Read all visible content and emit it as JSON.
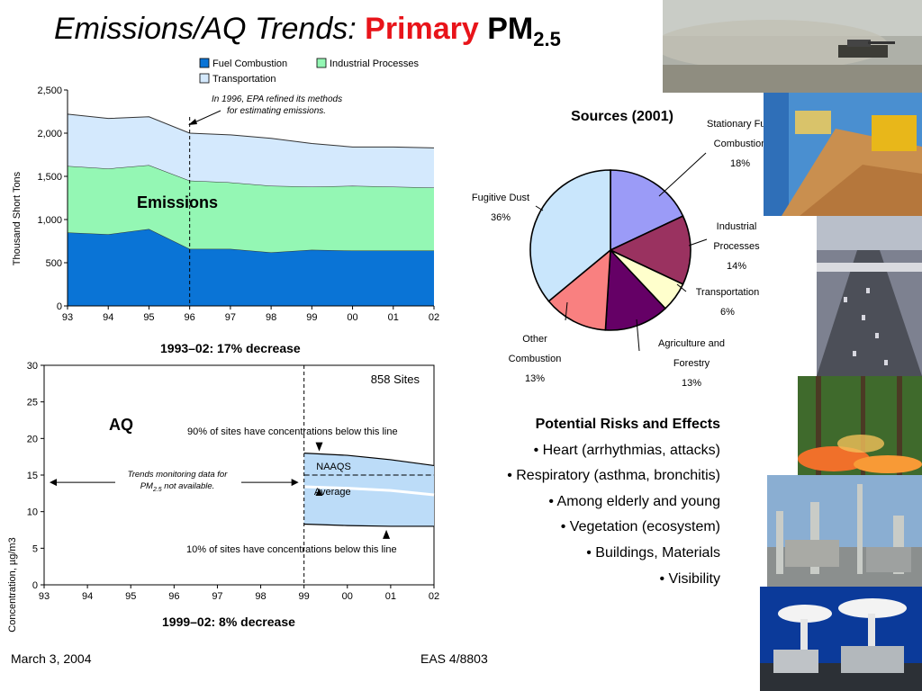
{
  "title": {
    "part1": "Emissions/AQ Trends: ",
    "part2": "Primary",
    "part3": "PM",
    "subscript": "2.5"
  },
  "colors": {
    "fuel": "#0a74d6",
    "industrial": "#94f7b4",
    "transportation": "#d4e9fd",
    "title_accent": "#e8141a"
  },
  "chart_data": [
    {
      "type": "area",
      "stacked": true,
      "x": [
        "93",
        "94",
        "95",
        "96",
        "97",
        "98",
        "99",
        "00",
        "01",
        "02"
      ],
      "series": [
        {
          "name": "Fuel Combustion",
          "values": [
            850,
            830,
            890,
            660,
            660,
            620,
            650,
            640,
            640,
            640
          ]
        },
        {
          "name": "Industrial Processes",
          "values": [
            770,
            760,
            740,
            790,
            770,
            770,
            730,
            750,
            740,
            730
          ]
        },
        {
          "name": "Transportation",
          "values": [
            600,
            580,
            560,
            550,
            550,
            550,
            500,
            450,
            460,
            460
          ]
        }
      ],
      "ylabel": "Thousand Short Tons",
      "ylim": [
        0,
        2500
      ],
      "yticks": [
        "0",
        "500",
        "1,000",
        "1,500",
        "2,000",
        "2,500"
      ],
      "label": "Emissions",
      "annotation": [
        "In 1996, EPA refined its methods",
        "for estimating emissions."
      ],
      "caption": "1993–02:  17%  decrease",
      "legend_position": "top"
    },
    {
      "type": "area",
      "x": [
        "93",
        "94",
        "95",
        "96",
        "97",
        "98",
        "99",
        "00",
        "01",
        "02"
      ],
      "band_x": [
        99,
        100,
        101,
        102
      ],
      "p90": [
        18,
        17.7,
        17.1,
        16.3
      ],
      "average": [
        13.4,
        13.2,
        12.9,
        12.3
      ],
      "p10": [
        8.3,
        8.1,
        8.0,
        8.0
      ],
      "naaqs": 15,
      "ylabel": "Concentration, µg/m3",
      "ylim": [
        0,
        30
      ],
      "yticks": [
        "0",
        "5",
        "10",
        "15",
        "20",
        "25",
        "30"
      ],
      "sites": "858 Sites",
      "label": "AQ",
      "naaqs_label": "NAAQS",
      "average_label": "Average",
      "top_note": "90% of sites have concentrations below this line",
      "bottom_note": "10% of sites have concentrations below this line",
      "trend_note_line1": "Trends monitoring data for",
      "trend_note_line2_a": "PM",
      "trend_note_line2_sub": "2.5",
      "trend_note_line2_b": " not available.",
      "caption": "1999–02:  8%  decrease"
    },
    {
      "type": "pie",
      "title": "Sources (2001)",
      "slices": [
        {
          "name_lines": [
            "Stationary Fuel",
            "Combustion"
          ],
          "pct_label": "18%",
          "value": 18,
          "color": "#9b9bf7"
        },
        {
          "name_lines": [
            "Industrial",
            "Processes"
          ],
          "pct_label": "14%",
          "value": 14,
          "color": "#9a3260"
        },
        {
          "name_lines": [
            "Transportation"
          ],
          "pct_label": "6%",
          "value": 6,
          "color": "#ffffcc"
        },
        {
          "name_lines": [
            "Agriculture and",
            "Forestry"
          ],
          "pct_label": "13%",
          "value": 13,
          "color": "#650066"
        },
        {
          "name_lines": [
            "Other",
            "Combustion"
          ],
          "pct_label": "13%",
          "value": 13,
          "color": "#f98080"
        },
        {
          "name_lines": [
            "Fugitive Dust"
          ],
          "pct_label": "36%",
          "value": 36,
          "color": "#c9e6fc"
        }
      ]
    }
  ],
  "risks": {
    "heading": "Potential Risks and Effects",
    "items": [
      "• Heart (arrhythmias, attacks)",
      "• Respiratory (asthma, bronchitis)",
      "• Among elderly and young",
      "• Vegetation (ecosystem)",
      "• Buildings, Materials",
      "• Visibility"
    ]
  },
  "footer": {
    "date": "March 3, 2004",
    "course": "EAS 4/8803"
  }
}
